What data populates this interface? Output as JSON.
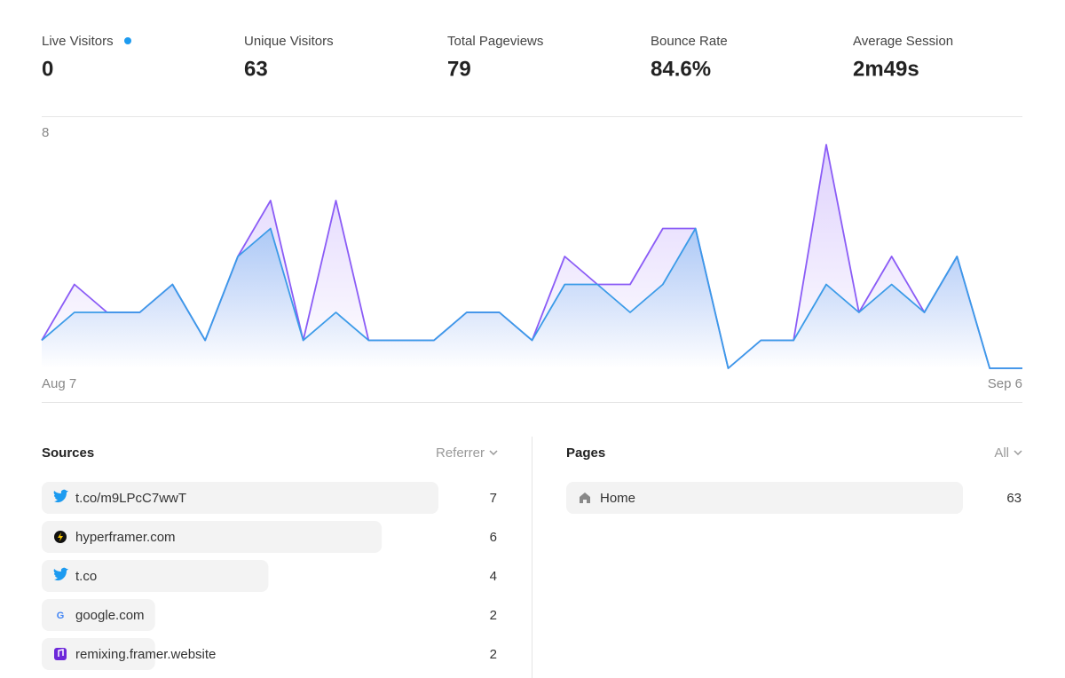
{
  "stats": [
    {
      "label": "Live Visitors",
      "value": "0"
    },
    {
      "label": "Unique Visitors",
      "value": "63"
    },
    {
      "label": "Total Pageviews",
      "value": "79"
    },
    {
      "label": "Bounce Rate",
      "value": "84.6%"
    },
    {
      "label": "Average Session",
      "value": "2m49s"
    }
  ],
  "chart_data": {
    "type": "line",
    "categories": [
      "Aug 7",
      null,
      null,
      null,
      null,
      null,
      null,
      null,
      null,
      null,
      null,
      null,
      null,
      null,
      null,
      null,
      null,
      null,
      null,
      null,
      null,
      null,
      null,
      null,
      null,
      null,
      null,
      null,
      null,
      null,
      "Sep 6"
    ],
    "series": [
      {
        "color": "#8b5cf6",
        "values": [
          1,
          3,
          2,
          2,
          3,
          1,
          4,
          6,
          1,
          6,
          1,
          1,
          1,
          2,
          2,
          1,
          4,
          3,
          3,
          5,
          5,
          0,
          1,
          1,
          8,
          2,
          4,
          2,
          4,
          0,
          0
        ]
      },
      {
        "color": "#3b9be8",
        "values": [
          1,
          2,
          2,
          2,
          3,
          1,
          4,
          5,
          1,
          2,
          1,
          1,
          1,
          2,
          2,
          1,
          3,
          3,
          2,
          3,
          5,
          0,
          1,
          1,
          3,
          2,
          3,
          2,
          4,
          0,
          0
        ]
      }
    ],
    "ylim": [
      0,
      8
    ],
    "yticks": [
      8
    ],
    "grid": false
  },
  "sources": {
    "title": "Sources",
    "filter": "Referrer",
    "items": [
      {
        "label": "t.co/m9LPcC7wwT",
        "value": 7
      },
      {
        "label": "hyperframer.com",
        "value": 6
      },
      {
        "label": "t.co",
        "value": 4
      },
      {
        "label": "google.com",
        "value": 2
      },
      {
        "label": "remixing.framer.website",
        "value": 2
      }
    ]
  },
  "pages": {
    "title": "Pages",
    "filter": "All",
    "items": [
      {
        "label": "Home",
        "value": 63
      }
    ]
  }
}
